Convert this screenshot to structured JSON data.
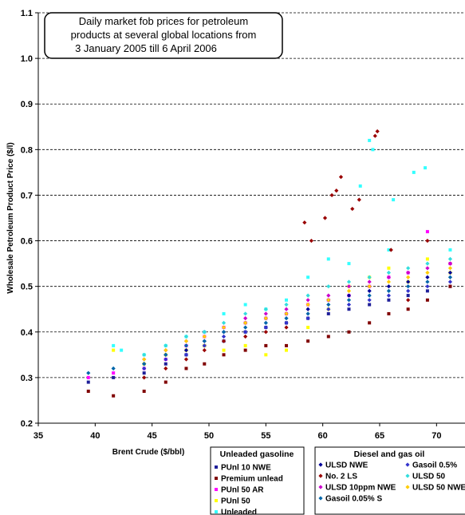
{
  "chart_data": {
    "type": "scatter",
    "title": "Daily market fob prices for petroleum products at several global locations from 3 January 2005 till 6 April 2006",
    "title_lines": [
      "Daily market fob prices for petroleum",
      "products at several global locations from",
      "3 January 2005 till 6 April 2006"
    ],
    "xlabel": "Brent Crude ($/bbl)",
    "ylabel": "Wholesale Petroleum Product Price ($/l)",
    "xlim": [
      35,
      72.5
    ],
    "ylim": [
      0.2,
      1.1
    ],
    "x_ticks": [
      "35",
      "40",
      "45",
      "50",
      "55",
      "60",
      "65",
      "70"
    ],
    "y_ticks": [
      "0.2",
      "0.3",
      "0.4",
      "0.5",
      "0.6",
      "0.7",
      "0.8",
      "0.9",
      "1.0",
      "1.1"
    ],
    "grid": "horizontal dashed",
    "legend_groups": [
      {
        "title": "Unleaded gasoline",
        "placement": "bottom-center",
        "series": [
          "PUnl 10 NWE",
          "Premium unlead",
          "PUnl 50 AR",
          "PUnl 50",
          "Unleaded"
        ]
      },
      {
        "title": "Diesel and gas oil",
        "placement": "bottom-right",
        "series": [
          "ULSD NWE",
          "No. 2 LS",
          "ULSD 10ppm NWE",
          "Gasoil 0.05% S",
          "Gasoil 0.5%",
          "ULSD 50",
          "ULSD 50 NWE"
        ]
      }
    ],
    "series": [
      {
        "name": "PUnl 10 NWE",
        "color": "#1f1f99",
        "marker": "square",
        "points": [
          [
            39.4,
            0.29
          ],
          [
            41.6,
            0.3
          ],
          [
            44.3,
            0.31
          ],
          [
            46.2,
            0.33
          ],
          [
            48.0,
            0.35
          ],
          [
            49.6,
            0.37
          ],
          [
            51.3,
            0.38
          ],
          [
            53.2,
            0.4
          ],
          [
            55.0,
            0.41
          ],
          [
            56.8,
            0.42
          ],
          [
            58.7,
            0.43
          ],
          [
            60.5,
            0.44
          ],
          [
            62.3,
            0.45
          ],
          [
            64.1,
            0.46
          ],
          [
            65.8,
            0.47
          ],
          [
            67.5,
            0.48
          ],
          [
            69.2,
            0.49
          ],
          [
            71.2,
            0.5
          ]
        ]
      },
      {
        "name": "Premium unlead",
        "color": "#800000",
        "marker": "square",
        "points": [
          [
            39.4,
            0.27
          ],
          [
            41.6,
            0.26
          ],
          [
            44.3,
            0.27
          ],
          [
            46.2,
            0.29
          ],
          [
            48.0,
            0.32
          ],
          [
            49.6,
            0.33
          ],
          [
            51.3,
            0.35
          ],
          [
            53.2,
            0.36
          ],
          [
            55.0,
            0.37
          ],
          [
            56.8,
            0.37
          ],
          [
            58.7,
            0.38
          ],
          [
            60.5,
            0.39
          ],
          [
            62.3,
            0.4
          ],
          [
            64.1,
            0.42
          ],
          [
            65.8,
            0.44
          ],
          [
            67.5,
            0.45
          ],
          [
            69.2,
            0.47
          ],
          [
            71.2,
            0.5
          ]
        ]
      },
      {
        "name": "PUnl 50 AR",
        "color": "#ff00ff",
        "marker": "square",
        "points": [
          [
            39.4,
            0.3
          ],
          [
            41.6,
            0.31
          ],
          [
            44.3,
            0.32
          ],
          [
            46.2,
            0.34
          ],
          [
            48.0,
            0.37
          ],
          [
            49.6,
            0.39
          ],
          [
            51.3,
            0.41
          ],
          [
            53.2,
            0.42
          ],
          [
            55.0,
            0.43
          ],
          [
            56.8,
            0.44
          ],
          [
            58.7,
            0.46
          ],
          [
            60.5,
            0.47
          ],
          [
            62.3,
            0.48
          ],
          [
            64.1,
            0.5
          ],
          [
            65.8,
            0.52
          ],
          [
            67.5,
            0.53
          ],
          [
            69.2,
            0.62
          ],
          [
            71.2,
            0.55
          ]
        ]
      },
      {
        "name": "PUnl 50",
        "color": "#ffff00",
        "marker": "square",
        "points": [
          [
            41.6,
            0.36
          ],
          [
            44.3,
            0.33
          ],
          [
            46.2,
            0.35
          ],
          [
            48.0,
            0.36
          ],
          [
            49.6,
            0.37
          ],
          [
            51.3,
            0.36
          ],
          [
            53.2,
            0.37
          ],
          [
            55.0,
            0.35
          ],
          [
            56.8,
            0.36
          ],
          [
            58.7,
            0.41
          ],
          [
            60.5,
            0.45
          ],
          [
            62.3,
            0.5
          ],
          [
            64.1,
            0.52
          ],
          [
            65.8,
            0.54
          ],
          [
            67.5,
            0.51
          ],
          [
            69.2,
            0.56
          ],
          [
            71.2,
            0.53
          ]
        ]
      },
      {
        "name": "Unleaded",
        "color": "#33ffff",
        "marker": "square",
        "points": [
          [
            41.6,
            0.37
          ],
          [
            42.3,
            0.36
          ],
          [
            44.3,
            0.35
          ],
          [
            46.2,
            0.37
          ],
          [
            48.0,
            0.39
          ],
          [
            49.6,
            0.4
          ],
          [
            51.3,
            0.44
          ],
          [
            53.2,
            0.46
          ],
          [
            55.0,
            0.45
          ],
          [
            56.8,
            0.47
          ],
          [
            58.7,
            0.52
          ],
          [
            60.5,
            0.56
          ],
          [
            62.3,
            0.55
          ],
          [
            63.3,
            0.72
          ],
          [
            64.1,
            0.82
          ],
          [
            64.4,
            0.8
          ],
          [
            65.8,
            0.58
          ],
          [
            66.2,
            0.69
          ],
          [
            68.0,
            0.75
          ],
          [
            69.0,
            0.76
          ],
          [
            71.2,
            0.58
          ]
        ]
      },
      {
        "name": "ULSD NWE",
        "color": "#000099",
        "marker": "diamond",
        "points": [
          [
            44.3,
            0.33
          ],
          [
            46.2,
            0.35
          ],
          [
            48.0,
            0.36
          ],
          [
            49.6,
            0.38
          ],
          [
            51.3,
            0.4
          ],
          [
            53.2,
            0.42
          ],
          [
            55.0,
            0.43
          ],
          [
            56.8,
            0.44
          ],
          [
            58.7,
            0.45
          ],
          [
            60.5,
            0.47
          ],
          [
            62.3,
            0.48
          ],
          [
            64.1,
            0.49
          ],
          [
            65.8,
            0.5
          ],
          [
            67.5,
            0.51
          ],
          [
            69.2,
            0.52
          ],
          [
            71.2,
            0.53
          ]
        ]
      },
      {
        "name": "No. 2 LS",
        "color": "#990000",
        "marker": "diamond",
        "points": [
          [
            44.3,
            0.3
          ],
          [
            46.2,
            0.32
          ],
          [
            48.0,
            0.34
          ],
          [
            49.6,
            0.36
          ],
          [
            51.3,
            0.38
          ],
          [
            53.2,
            0.39
          ],
          [
            55.0,
            0.4
          ],
          [
            56.8,
            0.41
          ],
          [
            58.4,
            0.64
          ],
          [
            59.0,
            0.6
          ],
          [
            60.2,
            0.65
          ],
          [
            60.8,
            0.7
          ],
          [
            61.2,
            0.71
          ],
          [
            61.6,
            0.74
          ],
          [
            62.6,
            0.67
          ],
          [
            63.2,
            0.69
          ],
          [
            64.6,
            0.83
          ],
          [
            64.8,
            0.84
          ],
          [
            66.0,
            0.58
          ],
          [
            67.5,
            0.47
          ],
          [
            69.2,
            0.6
          ],
          [
            71.2,
            0.55
          ]
        ]
      },
      {
        "name": "ULSD 10ppm NWE",
        "color": "#cc00cc",
        "marker": "diamond",
        "points": [
          [
            44.3,
            0.34
          ],
          [
            46.2,
            0.36
          ],
          [
            48.0,
            0.38
          ],
          [
            49.6,
            0.4
          ],
          [
            51.3,
            0.41
          ],
          [
            53.2,
            0.43
          ],
          [
            55.0,
            0.44
          ],
          [
            56.8,
            0.45
          ],
          [
            58.7,
            0.47
          ],
          [
            60.5,
            0.48
          ],
          [
            62.3,
            0.5
          ],
          [
            64.1,
            0.51
          ],
          [
            65.8,
            0.52
          ],
          [
            67.5,
            0.53
          ],
          [
            69.2,
            0.54
          ],
          [
            71.2,
            0.55
          ]
        ]
      },
      {
        "name": "Gasoil 0.05% S",
        "color": "#0066aa",
        "marker": "diamond",
        "points": [
          [
            39.4,
            0.31
          ],
          [
            41.6,
            0.32
          ],
          [
            44.3,
            0.33
          ],
          [
            46.2,
            0.35
          ],
          [
            48.0,
            0.37
          ],
          [
            49.6,
            0.38
          ],
          [
            51.3,
            0.4
          ],
          [
            53.2,
            0.41
          ],
          [
            55.0,
            0.42
          ],
          [
            56.8,
            0.43
          ],
          [
            58.7,
            0.44
          ],
          [
            60.5,
            0.46
          ],
          [
            62.3,
            0.47
          ],
          [
            64.1,
            0.48
          ],
          [
            65.8,
            0.49
          ],
          [
            67.5,
            0.5
          ],
          [
            69.2,
            0.51
          ],
          [
            71.2,
            0.52
          ]
        ]
      },
      {
        "name": "Gasoil 0.5%",
        "color": "#3333cc",
        "marker": "diamond",
        "points": [
          [
            44.3,
            0.32
          ],
          [
            46.2,
            0.34
          ],
          [
            48.0,
            0.35
          ],
          [
            49.6,
            0.37
          ],
          [
            51.3,
            0.39
          ],
          [
            53.2,
            0.4
          ],
          [
            55.0,
            0.41
          ],
          [
            56.8,
            0.42
          ],
          [
            58.7,
            0.43
          ],
          [
            60.5,
            0.45
          ],
          [
            62.3,
            0.46
          ],
          [
            64.1,
            0.47
          ],
          [
            65.8,
            0.48
          ],
          [
            67.5,
            0.49
          ],
          [
            69.2,
            0.5
          ],
          [
            71.2,
            0.51
          ]
        ]
      },
      {
        "name": "ULSD 50",
        "color": "#33dddd",
        "marker": "diamond",
        "points": [
          [
            44.3,
            0.35
          ],
          [
            46.2,
            0.37
          ],
          [
            48.0,
            0.39
          ],
          [
            49.6,
            0.4
          ],
          [
            51.3,
            0.42
          ],
          [
            53.2,
            0.44
          ],
          [
            55.0,
            0.45
          ],
          [
            56.8,
            0.46
          ],
          [
            58.7,
            0.48
          ],
          [
            60.5,
            0.5
          ],
          [
            62.3,
            0.51
          ],
          [
            64.1,
            0.52
          ],
          [
            65.8,
            0.53
          ],
          [
            67.5,
            0.54
          ],
          [
            69.2,
            0.55
          ],
          [
            71.2,
            0.56
          ]
        ]
      },
      {
        "name": "ULSD 50 NWE",
        "color": "#ffcc00",
        "marker": "diamond",
        "points": [
          [
            44.3,
            0.34
          ],
          [
            46.2,
            0.36
          ],
          [
            48.0,
            0.38
          ],
          [
            49.6,
            0.39
          ],
          [
            51.3,
            0.41
          ],
          [
            53.2,
            0.42
          ],
          [
            55.0,
            0.43
          ],
          [
            56.8,
            0.44
          ],
          [
            58.7,
            0.46
          ],
          [
            60.5,
            0.47
          ],
          [
            62.3,
            0.49
          ],
          [
            64.1,
            0.5
          ],
          [
            65.8,
            0.51
          ],
          [
            67.5,
            0.52
          ],
          [
            69.2,
            0.53
          ],
          [
            71.2,
            0.54
          ]
        ]
      }
    ]
  }
}
